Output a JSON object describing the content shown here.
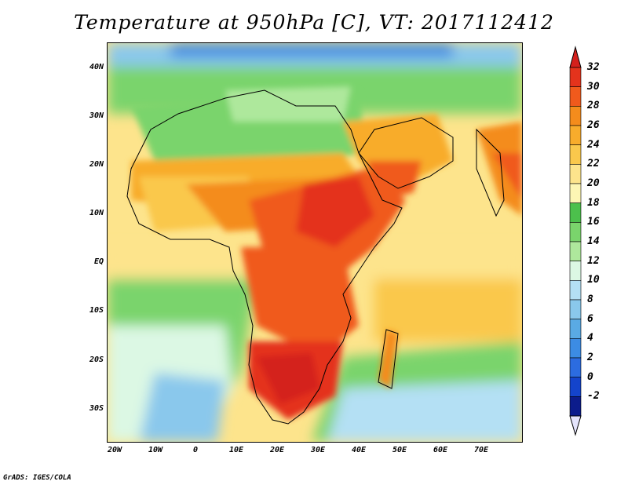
{
  "title": "Temperature at 950hPa [C], VT: 2017112412",
  "credit": "GrADS: IGES/COLA",
  "map": {
    "lat_labels": [
      "40N",
      "30N",
      "20N",
      "10N",
      "EQ",
      "10S",
      "20S",
      "30S"
    ],
    "lon_labels": [
      "20W",
      "10W",
      "0",
      "10E",
      "20E",
      "30E",
      "40E",
      "50E",
      "60E",
      "70E"
    ],
    "lat_range": [
      -36,
      45
    ],
    "lon_range": [
      -23,
      77
    ]
  },
  "colorbar": {
    "labels": [
      "32",
      "30",
      "28",
      "26",
      "24",
      "22",
      "20",
      "18",
      "16",
      "14",
      "12",
      "10",
      "8",
      "6",
      "4",
      "2",
      "0",
      "-2"
    ],
    "colors": [
      "#e4331c",
      "#f05a1c",
      "#f48c1c",
      "#f8ac2c",
      "#fac84c",
      "#fde48c",
      "#fdf6b4",
      "#4cc04c",
      "#7ad46c",
      "#aee89c",
      "#dcf8e4",
      "#b4e0f4",
      "#8ac8ec",
      "#5aaae4",
      "#3c8ce4",
      "#2c6ce0",
      "#1444cc",
      "#0c1c8c"
    ],
    "min_color": "#e4e4fc",
    "max_color": "#d4201c"
  }
}
